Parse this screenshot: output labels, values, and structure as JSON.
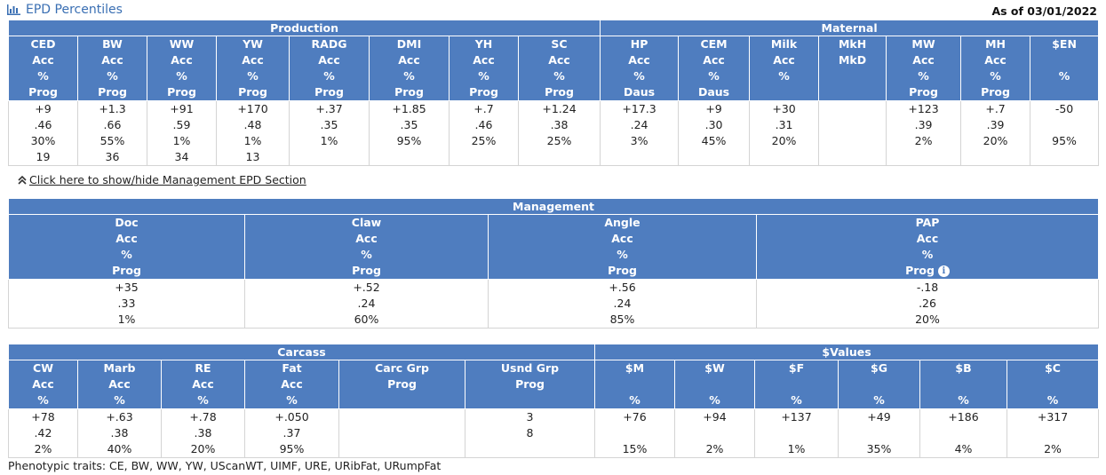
{
  "header": {
    "title": "EPD Percentiles",
    "as_of": "As of 03/01/2022",
    "chart_icon": "bar-chart-icon"
  },
  "production_maternal": {
    "groups": [
      "Production",
      "Maternal"
    ],
    "columns": [
      {
        "lines": [
          "CED",
          "Acc",
          "%",
          "Prog"
        ],
        "values": [
          "+9",
          ".46",
          "30%",
          "19"
        ]
      },
      {
        "lines": [
          "BW",
          "Acc",
          "%",
          "Prog"
        ],
        "values": [
          "+1.3",
          ".66",
          "55%",
          "36"
        ]
      },
      {
        "lines": [
          "WW",
          "Acc",
          "%",
          "Prog"
        ],
        "values": [
          "+91",
          ".59",
          "1%",
          "34"
        ]
      },
      {
        "lines": [
          "YW",
          "Acc",
          "%",
          "Prog"
        ],
        "values": [
          "+170",
          ".48",
          "1%",
          "13"
        ]
      },
      {
        "lines": [
          "RADG",
          "Acc",
          "%",
          "Prog"
        ],
        "values": [
          "+.37",
          ".35",
          "1%",
          ""
        ]
      },
      {
        "lines": [
          "DMI",
          "Acc",
          "%",
          "Prog"
        ],
        "values": [
          "+1.85",
          ".35",
          "95%",
          ""
        ]
      },
      {
        "lines": [
          "YH",
          "Acc",
          "%",
          "Prog"
        ],
        "values": [
          "+.7",
          ".46",
          "25%",
          ""
        ]
      },
      {
        "lines": [
          "SC",
          "Acc",
          "%",
          "Prog"
        ],
        "values": [
          "+1.24",
          ".38",
          "25%",
          ""
        ]
      },
      {
        "lines": [
          "HP",
          "Acc",
          "%",
          "Daus"
        ],
        "values": [
          "+17.3",
          ".24",
          "3%",
          ""
        ]
      },
      {
        "lines": [
          "CEM",
          "Acc",
          "%",
          "Daus"
        ],
        "values": [
          "+9",
          ".30",
          "45%",
          ""
        ]
      },
      {
        "lines": [
          "Milk",
          "Acc",
          "%",
          ""
        ],
        "values": [
          "+30",
          ".31",
          "20%",
          ""
        ]
      },
      {
        "lines": [
          "MkH",
          "MkD",
          "",
          ""
        ],
        "values": [
          "",
          "",
          "",
          ""
        ]
      },
      {
        "lines": [
          "MW",
          "Acc",
          "%",
          "Prog"
        ],
        "values": [
          "+123",
          ".39",
          "2%",
          ""
        ]
      },
      {
        "lines": [
          "MH",
          "Acc",
          "%",
          "Prog"
        ],
        "values": [
          "+.7",
          ".39",
          "20%",
          ""
        ]
      },
      {
        "lines": [
          "$EN",
          "",
          "%",
          ""
        ],
        "values": [
          "-50",
          "",
          "95%",
          ""
        ]
      }
    ]
  },
  "toggle_label": "Click here to show/hide Management EPD Section",
  "management": {
    "group": "Management",
    "columns": [
      {
        "lines": [
          "Doc",
          "Acc",
          "%",
          "Prog"
        ],
        "values": [
          "+35",
          ".33",
          "1%"
        ]
      },
      {
        "lines": [
          "Claw",
          "Acc",
          "%",
          "Prog"
        ],
        "values": [
          "+.52",
          ".24",
          "60%"
        ]
      },
      {
        "lines": [
          "Angle",
          "Acc",
          "%",
          "Prog"
        ],
        "values": [
          "+.56",
          ".24",
          "85%"
        ]
      },
      {
        "lines": [
          "PAP",
          "Acc",
          "%",
          "Prog"
        ],
        "values": [
          "-.18",
          ".26",
          "20%"
        ]
      }
    ]
  },
  "carcass_values": {
    "groups": [
      "Carcass",
      "$Values"
    ],
    "columns": [
      {
        "lines": [
          "CW",
          "Acc",
          "%"
        ],
        "values": [
          "+78",
          ".42",
          "2%"
        ]
      },
      {
        "lines": [
          "Marb",
          "Acc",
          "%"
        ],
        "values": [
          "+.63",
          ".38",
          "40%"
        ]
      },
      {
        "lines": [
          "RE",
          "Acc",
          "%"
        ],
        "values": [
          "+.78",
          ".38",
          "20%"
        ]
      },
      {
        "lines": [
          "Fat",
          "Acc",
          "%"
        ],
        "values": [
          "+.050",
          ".37",
          "95%"
        ]
      },
      {
        "lines": [
          "Carc Grp",
          "Prog",
          ""
        ],
        "values": [
          "",
          "",
          ""
        ]
      },
      {
        "lines": [
          "Usnd Grp",
          "Prog",
          ""
        ],
        "values": [
          "3",
          "8",
          ""
        ]
      },
      {
        "lines": [
          "$M",
          "",
          "%"
        ],
        "values": [
          "+76",
          "",
          "15%"
        ]
      },
      {
        "lines": [
          "$W",
          "",
          "%"
        ],
        "values": [
          "+94",
          "",
          "2%"
        ]
      },
      {
        "lines": [
          "$F",
          "",
          "%"
        ],
        "values": [
          "+137",
          "",
          "1%"
        ]
      },
      {
        "lines": [
          "$G",
          "",
          "%"
        ],
        "values": [
          "+49",
          "",
          "35%"
        ]
      },
      {
        "lines": [
          "$B",
          "",
          "%"
        ],
        "values": [
          "+186",
          "",
          "4%"
        ]
      },
      {
        "lines": [
          "$C",
          "",
          "%"
        ],
        "values": [
          "+317",
          "",
          "2%"
        ]
      }
    ]
  },
  "footnote": "Phenotypic traits: CE, BW, WW, YW, UScanWT, UIMF, URE, URibFat, URumpFat"
}
